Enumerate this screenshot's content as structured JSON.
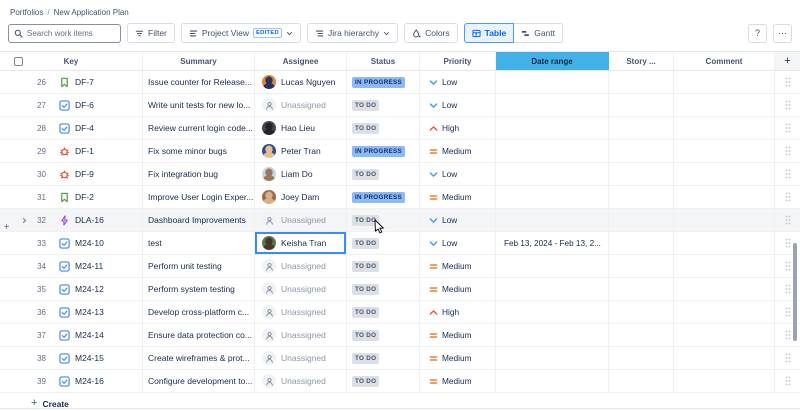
{
  "breadcrumb": {
    "items": [
      "Portfolios",
      "New Application Plan"
    ],
    "separator": "/"
  },
  "toolbar": {
    "search_placeholder": "Search work items",
    "filter_label": "Filter",
    "project_view_label": "Project View",
    "edited_badge": "EDITED",
    "hierarchy_label": "Jira hierarchy",
    "colors_label": "Colors",
    "table_label": "Table",
    "gantt_label": "Gantt",
    "help_label": "?",
    "more_label": "⋯"
  },
  "table": {
    "columns": [
      {
        "id": "key",
        "label": "Key"
      },
      {
        "id": "summary",
        "label": "Summary"
      },
      {
        "id": "assignee",
        "label": "Assignee"
      },
      {
        "id": "status",
        "label": "Status"
      },
      {
        "id": "priority",
        "label": "Priority"
      },
      {
        "id": "daterange",
        "label": "Date range"
      },
      {
        "id": "story",
        "label": "Story ..."
      },
      {
        "id": "comment",
        "label": "Comment"
      },
      {
        "id": "add",
        "label": "+"
      }
    ],
    "highlighted_column": "Date range",
    "rows": [
      {
        "num": 26,
        "key": "DF-7",
        "type": "story",
        "summary": "Issue counter for Release...",
        "assignee": "Lucas Nguyen",
        "status": "IN PROGRESS",
        "priority": "Low",
        "date_range": "",
        "avatar": [
          "#D9883B",
          "#27335C"
        ]
      },
      {
        "num": 27,
        "key": "DF-6",
        "type": "task",
        "summary": "Write unit tests for new lo...",
        "assignee": "Unassigned",
        "status": "TO DO",
        "priority": "Low",
        "date_range": ""
      },
      {
        "num": 28,
        "key": "DF-4",
        "type": "task",
        "summary": "Review current login code...",
        "assignee": "Hao Lieu",
        "status": "TO DO",
        "priority": "High",
        "date_range": "",
        "avatar": [
          "#43474E",
          "#23252A"
        ]
      },
      {
        "num": 29,
        "key": "DF-1",
        "type": "bug",
        "summary": "Fix some minor bugs",
        "assignee": "Peter Tran",
        "status": "IN PROGRESS",
        "priority": "Medium",
        "date_range": "",
        "avatar": [
          "#2D4F93",
          "#E7BD93"
        ]
      },
      {
        "num": 30,
        "key": "DF-9",
        "type": "bug",
        "summary": "Fix integration bug",
        "assignee": "Liam Do",
        "status": "TO DO",
        "priority": "Low",
        "date_range": "",
        "avatar": [
          "#CDD3DA",
          "#99785F"
        ]
      },
      {
        "num": 31,
        "key": "DF-2",
        "type": "story",
        "summary": "Improve User Login Exper...",
        "assignee": "Joey Dam",
        "status": "IN PROGRESS",
        "priority": "Medium",
        "date_range": "",
        "avatar": [
          "#9A6A44",
          "#D7B08A"
        ]
      },
      {
        "num": 32,
        "key": "DLA-16",
        "type": "epic",
        "summary": "Dashboard Improvements",
        "assignee": "Unassigned",
        "status": "TO DO",
        "priority": "Low",
        "date_range": "",
        "highlighted": true,
        "expandable": true
      },
      {
        "num": 33,
        "key": "M24-10",
        "type": "task",
        "summary": "test",
        "assignee": "Keisha Tran",
        "status": "TO DO",
        "priority": "Low",
        "date_range": "Feb 13, 2024 - Feb 13, 2...",
        "selected_cell": "assignee",
        "avatar": [
          "#567A45",
          "#4A372B"
        ]
      },
      {
        "num": 34,
        "key": "M24-11",
        "type": "task",
        "summary": "Perform unit testing",
        "assignee": "Unassigned",
        "status": "TO DO",
        "priority": "Medium",
        "date_range": ""
      },
      {
        "num": 35,
        "key": "M24-12",
        "type": "task",
        "summary": "Perform system testing",
        "assignee": "Unassigned",
        "status": "TO DO",
        "priority": "Medium",
        "date_range": ""
      },
      {
        "num": 36,
        "key": "M24-13",
        "type": "task",
        "summary": "Develop cross-platform c...",
        "assignee": "Unassigned",
        "status": "TO DO",
        "priority": "High",
        "date_range": ""
      },
      {
        "num": 37,
        "key": "M24-14",
        "type": "task",
        "summary": "Ensure data protection co...",
        "assignee": "Unassigned",
        "status": "TO DO",
        "priority": "Medium",
        "date_range": ""
      },
      {
        "num": 38,
        "key": "M24-15",
        "type": "task",
        "summary": "Create wireframes & prot...",
        "assignee": "Unassigned",
        "status": "TO DO",
        "priority": "Medium",
        "date_range": ""
      },
      {
        "num": 39,
        "key": "M24-16",
        "type": "task",
        "summary": "Configure development to...",
        "assignee": "Unassigned",
        "status": "TO DO",
        "priority": "Medium",
        "date_range": ""
      }
    ]
  },
  "footer": {
    "create_label": "Create"
  },
  "colors": {
    "accent_blue": "#388BFF",
    "date_range_header_bg": "#42B1E8",
    "in_progress_badge_bg": "#8FB8F8",
    "in_progress_badge_text": "#09326C",
    "todo_badge_bg": "#DCDFE4",
    "todo_badge_text": "#44546F",
    "priority_low": "#4A9DEC",
    "priority_medium": "#E97F33",
    "priority_high": "#EC5B49",
    "story_icon": "#5AA44E",
    "task_icon": "#4688EC",
    "bug_icon": "#E34935",
    "epic_icon": "#8F4DE7",
    "selected_view_bg": "#E9F2FF",
    "selected_view_text": "#0C66E4"
  }
}
